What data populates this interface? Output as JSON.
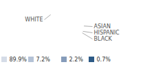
{
  "chart_data": {
    "type": "pie",
    "categories": [
      "WHITE",
      "ASIAN",
      "HISPANIC",
      "BLACK"
    ],
    "values": [
      89.9,
      7.2,
      2.2,
      0.7
    ],
    "value_labels": [
      "89.9%",
      "7.2%",
      "2.2%",
      "0.7%"
    ],
    "colors": [
      "#d5dce7",
      "#b4c2d6",
      "#869cba",
      "#2d5a86"
    ],
    "data_labels": true
  }
}
